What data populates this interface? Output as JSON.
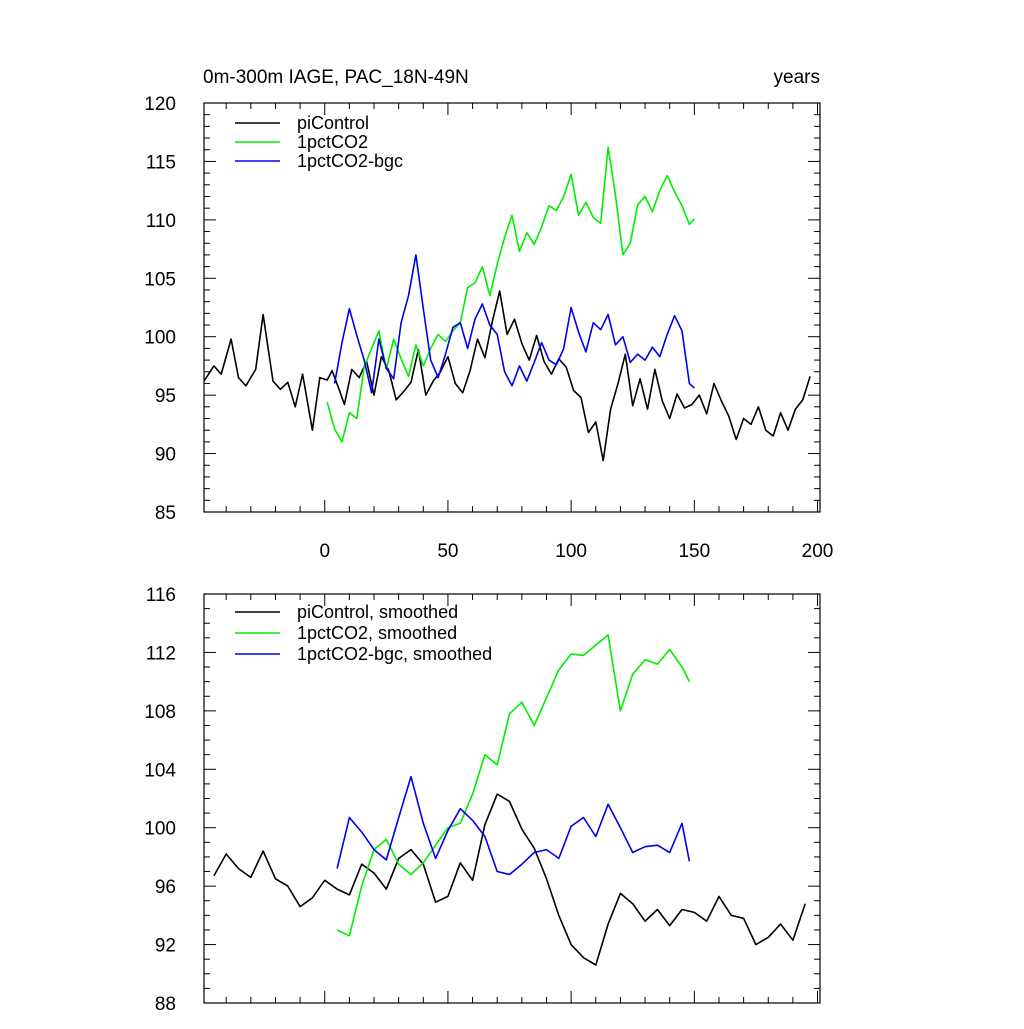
{
  "title_left": "0m-300m IAGE, PAC_18N-49N",
  "title_right": "years",
  "colors": {
    "piControl": "#000000",
    "1pctCO2": "#00ee00",
    "1pctCO2-bgc": "#0000ee"
  },
  "chart_data": [
    {
      "type": "line",
      "title": "0m-300m IAGE, PAC_18N-49N",
      "units_label": "years",
      "xlim": [
        -49,
        201
      ],
      "ylim": [
        85,
        120
      ],
      "x_ticks": [
        0,
        50,
        100,
        150,
        200
      ],
      "x_tick_labels": [
        "0",
        "50",
        "100",
        "150",
        "200"
      ],
      "y_ticks": [
        85,
        90,
        95,
        100,
        105,
        110,
        115,
        120
      ],
      "y_tick_labels": [
        "85",
        "90",
        "95",
        "100",
        "105",
        "110",
        "115",
        "120"
      ],
      "legend": [
        "piControl",
        "1pctCO2",
        "1pctCO2-bgc"
      ],
      "series": [
        {
          "name": "piControl",
          "color": "#000000",
          "x": [
            -49,
            -45,
            -42,
            -38,
            -35,
            -32,
            -28,
            -25,
            -21,
            -18,
            -15,
            -12,
            -9,
            -5,
            -2,
            1,
            3,
            6,
            8,
            11,
            14,
            17,
            20,
            23,
            26,
            29,
            32,
            35,
            38,
            41,
            44,
            47,
            50,
            53,
            56,
            59,
            62,
            65,
            68,
            71,
            74,
            77,
            80,
            83,
            86,
            89,
            92,
            95,
            98,
            101,
            104,
            107,
            110,
            113,
            116,
            119,
            122,
            125,
            128,
            131,
            134,
            137,
            140,
            143,
            146,
            149,
            152,
            155,
            158,
            161,
            164,
            167,
            170,
            173,
            176,
            179,
            182,
            185,
            188,
            191,
            194,
            197
          ],
          "values": [
            96.2,
            97.5,
            96.8,
            99.8,
            96.5,
            95.8,
            97.2,
            101.9,
            96.2,
            95.5,
            96.1,
            94.0,
            96.8,
            92.0,
            96.5,
            96.3,
            97.1,
            95.4,
            94.2,
            97.2,
            96.5,
            97.9,
            95.0,
            98.3,
            97.1,
            94.6,
            95.3,
            96.1,
            98.9,
            95.0,
            96.2,
            97.0,
            98.3,
            96.0,
            95.2,
            97.1,
            99.8,
            98.2,
            101.3,
            103.9,
            100.2,
            101.5,
            99.4,
            98.0,
            100.1,
            97.9,
            96.8,
            98.1,
            97.4,
            95.4,
            94.8,
            91.8,
            92.7,
            89.4,
            93.8,
            96.0,
            98.5,
            94.1,
            96.4,
            93.8,
            97.2,
            94.5,
            93.0,
            95.1,
            93.9,
            94.2,
            95.0,
            93.4,
            96.0,
            94.5,
            93.2,
            91.2,
            93.0,
            92.5,
            94.0,
            92.0,
            91.5,
            93.5,
            92.0,
            93.8,
            94.6,
            96.6
          ]
        },
        {
          "name": "1pctCO2",
          "color": "#00ee00",
          "x": [
            1,
            4,
            7,
            10,
            13,
            16,
            19,
            22,
            25,
            28,
            31,
            34,
            37,
            40,
            43,
            46,
            49,
            52,
            55,
            58,
            61,
            64,
            67,
            70,
            73,
            76,
            79,
            82,
            85,
            88,
            91,
            94,
            97,
            100,
            103,
            106,
            109,
            112,
            115,
            118,
            121,
            124,
            127,
            130,
            133,
            136,
            139,
            142,
            145,
            148,
            150
          ],
          "values": [
            94.4,
            92.1,
            91.0,
            93.5,
            93.0,
            97.4,
            99.0,
            100.5,
            97.2,
            99.8,
            98.1,
            96.6,
            99.3,
            97.5,
            99.0,
            100.2,
            99.6,
            100.5,
            101.2,
            104.2,
            104.6,
            106.0,
            103.5,
            106.2,
            108.5,
            110.4,
            107.3,
            108.9,
            107.9,
            109.4,
            111.2,
            110.8,
            112.0,
            113.9,
            110.4,
            111.5,
            110.2,
            109.7,
            116.2,
            112.1,
            107.0,
            108.0,
            111.3,
            112.0,
            110.7,
            112.5,
            113.8,
            112.4,
            111.2,
            109.6,
            110.1
          ]
        },
        {
          "name": "1pctCO2-bgc",
          "color": "#0000ee",
          "x": [
            4,
            7,
            10,
            13,
            16,
            19,
            22,
            25,
            28,
            31,
            34,
            37,
            40,
            43,
            46,
            49,
            52,
            55,
            58,
            61,
            64,
            67,
            70,
            73,
            76,
            79,
            82,
            85,
            88,
            91,
            94,
            97,
            100,
            103,
            106,
            109,
            112,
            115,
            118,
            121,
            124,
            127,
            130,
            133,
            136,
            139,
            142,
            145,
            148,
            150
          ],
          "values": [
            96.0,
            99.5,
            102.4,
            100.1,
            98.0,
            95.2,
            99.8,
            97.3,
            96.4,
            101.2,
            103.5,
            107.0,
            102.4,
            98.0,
            96.5,
            98.5,
            100.8,
            101.2,
            99.0,
            101.5,
            102.8,
            101.0,
            100.2,
            97.0,
            95.8,
            97.5,
            96.2,
            97.8,
            99.5,
            98.0,
            97.6,
            99.0,
            102.5,
            100.4,
            98.7,
            101.2,
            100.6,
            101.9,
            99.3,
            100.0,
            97.8,
            98.5,
            98.0,
            99.1,
            98.3,
            100.2,
            101.8,
            100.5,
            96.0,
            95.6
          ]
        }
      ]
    },
    {
      "type": "line",
      "xlim": [
        -49,
        201
      ],
      "ylim": [
        88,
        116
      ],
      "y_ticks": [
        88,
        92,
        96,
        100,
        104,
        108,
        112,
        116
      ],
      "y_tick_labels": [
        "88",
        "92",
        "96",
        "100",
        "104",
        "108",
        "112",
        "116"
      ],
      "legend": [
        "piControl, smoothed",
        "1pctCO2, smoothed",
        "1pctCO2-bgc, smoothed"
      ],
      "series": [
        {
          "name": "piControl, smoothed",
          "color": "#000000",
          "x": [
            -45,
            -40,
            -35,
            -30,
            -25,
            -20,
            -15,
            -10,
            -5,
            0,
            5,
            10,
            15,
            20,
            25,
            30,
            35,
            40,
            45,
            50,
            55,
            60,
            65,
            70,
            75,
            80,
            85,
            90,
            95,
            100,
            105,
            110,
            115,
            120,
            125,
            130,
            135,
            140,
            145,
            150,
            155,
            160,
            165,
            170,
            175,
            180,
            185,
            190,
            195
          ],
          "values": [
            96.7,
            98.2,
            97.2,
            96.6,
            98.4,
            96.5,
            96.0,
            94.6,
            95.2,
            96.4,
            95.8,
            95.4,
            97.5,
            96.9,
            95.8,
            97.9,
            98.5,
            97.5,
            94.9,
            95.3,
            97.6,
            96.4,
            100.2,
            102.3,
            101.8,
            99.9,
            98.6,
            96.5,
            94.0,
            92.0,
            91.1,
            90.6,
            93.4,
            95.5,
            94.8,
            93.6,
            94.4,
            93.3,
            94.4,
            94.2,
            93.6,
            95.3,
            94.0,
            93.8,
            92.0,
            92.5,
            93.4,
            92.3,
            94.8
          ]
        },
        {
          "name": "1pctCO2, smoothed",
          "color": "#00ee00",
          "x": [
            5,
            10,
            15,
            20,
            25,
            30,
            35,
            40,
            45,
            50,
            55,
            60,
            65,
            70,
            75,
            80,
            85,
            90,
            95,
            100,
            105,
            110,
            115,
            120,
            125,
            130,
            135,
            140,
            145,
            148
          ],
          "values": [
            93.0,
            92.6,
            96.0,
            98.5,
            99.2,
            97.5,
            96.8,
            97.6,
            98.8,
            100.0,
            100.3,
            102.3,
            105.0,
            104.3,
            107.8,
            108.6,
            107.0,
            108.9,
            110.8,
            111.9,
            111.8,
            112.5,
            113.2,
            108.0,
            110.5,
            111.5,
            111.2,
            112.2,
            111.0,
            110.0
          ]
        },
        {
          "name": "1pctCO2-bgc, smoothed",
          "color": "#0000ee",
          "x": [
            5,
            10,
            15,
            20,
            25,
            30,
            35,
            40,
            45,
            50,
            55,
            60,
            65,
            70,
            75,
            80,
            85,
            90,
            95,
            100,
            105,
            110,
            115,
            120,
            125,
            130,
            135,
            140,
            145,
            148
          ],
          "values": [
            97.2,
            100.7,
            99.7,
            98.5,
            97.8,
            100.7,
            103.5,
            100.3,
            97.9,
            99.8,
            101.3,
            100.5,
            99.4,
            97.0,
            96.8,
            97.5,
            98.3,
            98.5,
            97.9,
            100.1,
            100.7,
            99.4,
            101.6,
            100.0,
            98.3,
            98.7,
            98.8,
            98.3,
            100.3,
            97.7
          ]
        }
      ]
    }
  ]
}
